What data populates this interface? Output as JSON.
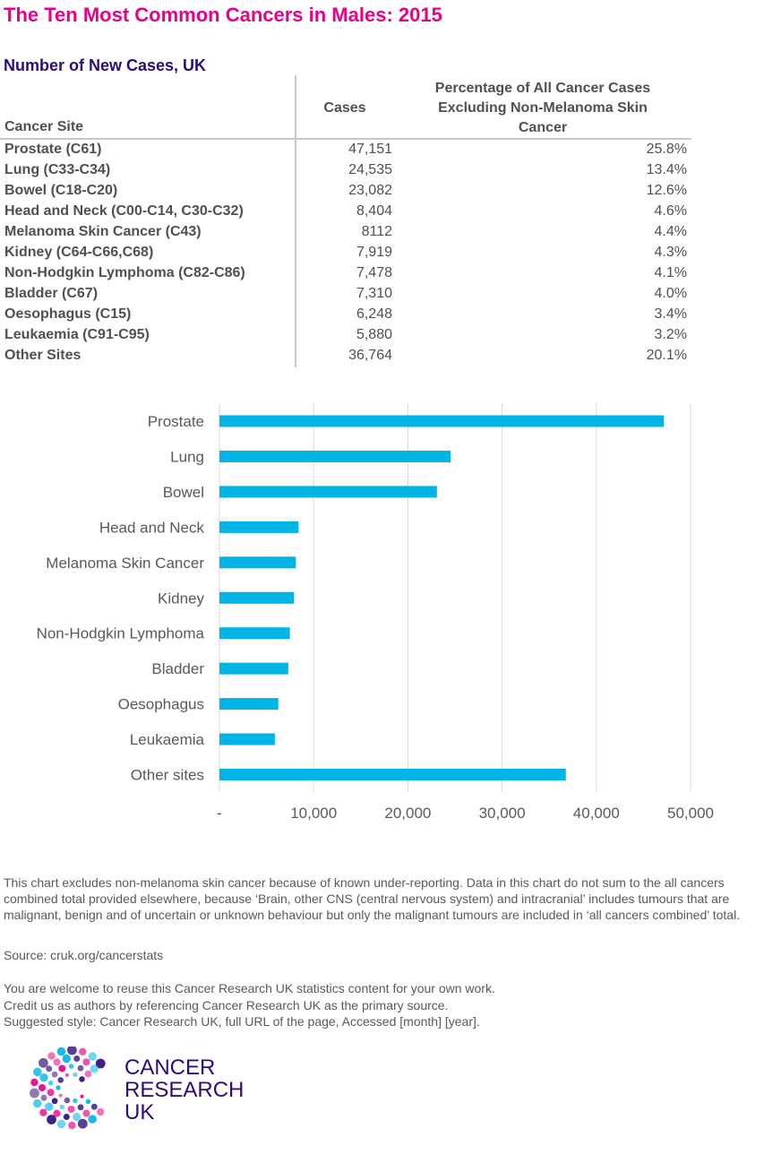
{
  "title": "The Ten Most Common Cancers in Males: 2015",
  "subtitle": "Number of New Cases, UK",
  "table": {
    "headers": {
      "site": "Cancer Site",
      "cases": "Cases",
      "pct_line1": "Percentage of All Cancer Cases",
      "pct_line2": "Excluding Non-Melanoma Skin",
      "pct_line3": "Cancer"
    },
    "rows": [
      {
        "site": "Prostate (C61)",
        "cases": "47,151",
        "pct": "25.8%"
      },
      {
        "site": "Lung (C33-C34)",
        "cases": "24,535",
        "pct": "13.4%"
      },
      {
        "site": "Bowel (C18-C20)",
        "cases": "23,082",
        "pct": "12.6%"
      },
      {
        "site": "Head and Neck (C00-C14, C30-C32)",
        "cases": "8,404",
        "pct": "4.6%"
      },
      {
        "site": "Melanoma Skin Cancer (C43)",
        "cases": "8112",
        "pct": "4.4%"
      },
      {
        "site": "Kidney (C64-C66,C68)",
        "cases": "7,919",
        "pct": "4.3%"
      },
      {
        "site": "Non-Hodgkin Lymphoma (C82-C86)",
        "cases": "7,478",
        "pct": "4.1%"
      },
      {
        "site": "Bladder (C67)",
        "cases": "7,310",
        "pct": "4.0%"
      },
      {
        "site": "Oesophagus (C15)",
        "cases": "6,248",
        "pct": "3.4%"
      },
      {
        "site": "Leukaemia (C91-C95)",
        "cases": "5,880",
        "pct": "3.2%"
      },
      {
        "site": "Other Sites",
        "cases": "36,764",
        "pct": "20.1%"
      }
    ]
  },
  "chart_data": {
    "type": "bar",
    "orientation": "horizontal",
    "categories": [
      "Prostate",
      "Lung",
      "Bowel",
      "Head and Neck",
      "Melanoma Skin Cancer",
      "Kidney",
      "Non-Hodgkin Lymphoma",
      "Bladder",
      "Oesophagus",
      "Leukaemia",
      "Other sites"
    ],
    "values": [
      47151,
      24535,
      23082,
      8404,
      8112,
      7919,
      7478,
      7310,
      6248,
      5880,
      36764
    ],
    "xlim": [
      0,
      50000
    ],
    "xticks": [
      0,
      10000,
      20000,
      30000,
      40000,
      50000
    ],
    "xtick_labels": [
      "-",
      "10,000",
      "20,000",
      "30,000",
      "40,000",
      "50,000"
    ],
    "grid": "vertical",
    "bar_color": "#00b4e6",
    "grid_color": "#d9d9d9"
  },
  "notes": {
    "exclusion": "This chart excludes non-melanoma skin cancer because of known under-reporting. Data in this chart do not sum to the all cancers combined total provided elsewhere, because ‘Brain, other CNS (central nervous system) and intracranial’ includes tumours that are malignant, benign and of uncertain or unknown behaviour but only the malignant tumours are included in ‘all cancers combined’ total.",
    "source": "Source: cruk.org/cancerstats",
    "reuse_line1": "You are welcome to reuse this Cancer Research UK statistics content for your own work.",
    "reuse_line2": "Credit us as authors by referencing Cancer Research UK as the primary source.",
    "reuse_line3": "Suggested style: Cancer Research UK, full URL of the page, Accessed [month] [year]."
  },
  "logo": {
    "line1": "CANCER",
    "line2": "RESEARCH",
    "line3": "UK",
    "colors": [
      "#e8008a",
      "#2e0b7a",
      "#00b4e6"
    ]
  }
}
